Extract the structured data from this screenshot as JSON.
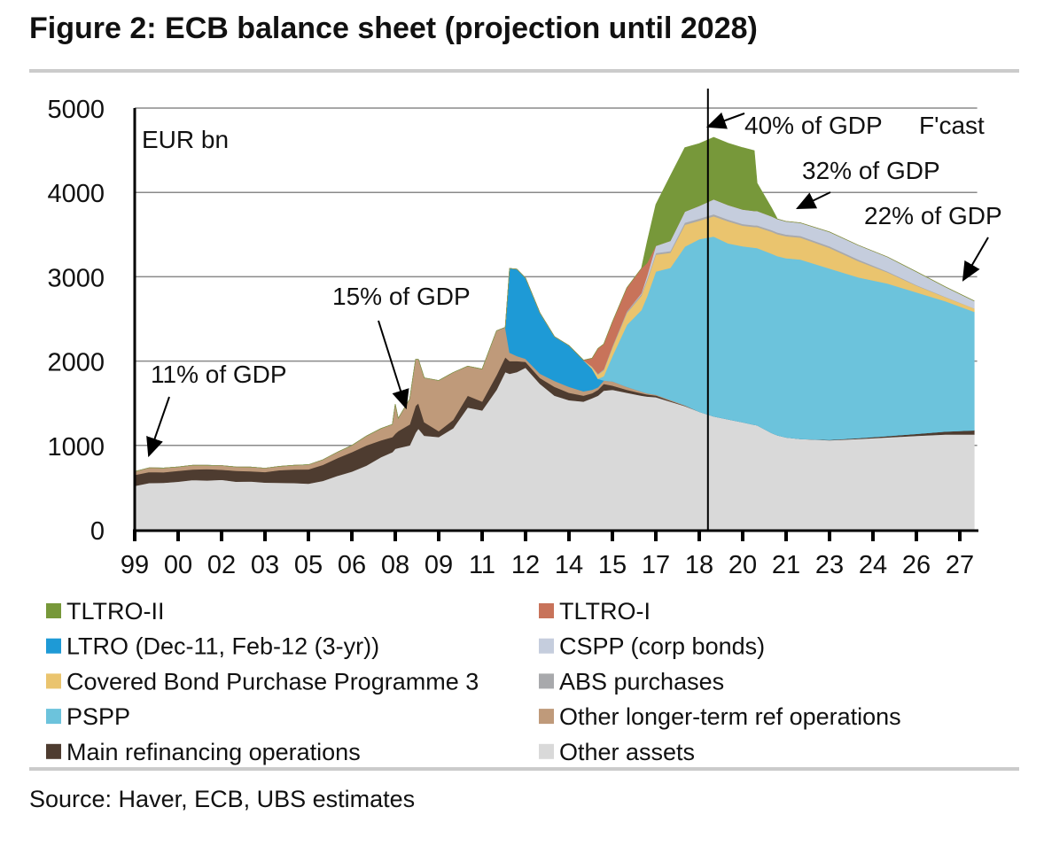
{
  "title": "Figure 2: ECB balance sheet (projection until 2028)",
  "source": "Source:  Haver, ECB, UBS estimates",
  "chart_data": {
    "type": "area",
    "stacked": true,
    "title": "Figure 2: ECB balance sheet (projection until 2028)",
    "ylabel": "EUR bn",
    "xlabel": "",
    "ylim": [
      0,
      5000
    ],
    "xlim": [
      1999,
      2028.1
    ],
    "grid": true,
    "legend_position": "bottom",
    "forecast_start": 2018.8,
    "forecast_label": "F'cast",
    "y_ticks": [
      "0",
      "1000",
      "2000",
      "3000",
      "4000",
      "5000"
    ],
    "y_tick_values": [
      0,
      1000,
      2000,
      3000,
      4000,
      5000
    ],
    "x_ticks": [
      "99",
      "00",
      "02",
      "03",
      "05",
      "06",
      "08",
      "09",
      "11",
      "12",
      "14",
      "15",
      "17",
      "18",
      "20",
      "21",
      "23",
      "24",
      "26",
      "27"
    ],
    "x_tick_values": [
      1999,
      2000.5,
      2002,
      2003.5,
      2005,
      2006.5,
      2008,
      2009.5,
      2011,
      2012.5,
      2014,
      2015.5,
      2017,
      2018.5,
      2020,
      2021.5,
      2023,
      2024.5,
      2026,
      2027.5
    ],
    "annotations": [
      {
        "text": "11% of GDP",
        "x": 1999.5
      },
      {
        "text": "15% of GDP",
        "x": 2008.4
      },
      {
        "text": "40% of GDP",
        "x": 2018.8
      },
      {
        "text": "32% of GDP",
        "x": 2021.5
      },
      {
        "text": "22% of GDP",
        "x": 2027.6
      }
    ],
    "x": [
      1999.0,
      1999.5,
      2000.0,
      2000.5,
      2001.0,
      2001.5,
      2002.0,
      2002.5,
      2003.0,
      2003.5,
      2004.0,
      2004.5,
      2005.0,
      2005.5,
      2006.0,
      2006.5,
      2007.0,
      2007.5,
      2007.9,
      2008.0,
      2008.1,
      2008.5,
      2008.7,
      2008.8,
      2009.0,
      2009.5,
      2010.0,
      2010.5,
      2011.0,
      2011.5,
      2011.8,
      2011.95,
      2012.2,
      2012.5,
      2013.0,
      2013.5,
      2014.0,
      2014.5,
      2014.8,
      2015.0,
      2015.2,
      2015.5,
      2016.0,
      2016.5,
      2016.7,
      2017.0,
      2017.5,
      2018.0,
      2018.5,
      2019.0,
      2019.5,
      2020.0,
      2020.4,
      2020.5,
      2021.0,
      2021.2,
      2021.5,
      2022.0,
      2023.0,
      2024.0,
      2025.0,
      2026.0,
      2027.0,
      2028.0
    ],
    "series": [
      {
        "name": "Other assets",
        "color": "#D9D9D9",
        "values": [
          520,
          555,
          557,
          570,
          590,
          585,
          592,
          570,
          574,
          560,
          557,
          555,
          546,
          580,
          640,
          690,
          760,
          860,
          920,
          960,
          970,
          1000,
          1150,
          1200,
          1116,
          1100,
          1204,
          1450,
          1415,
          1660,
          1870,
          1850,
          1870,
          1922,
          1730,
          1590,
          1537,
          1520,
          1560,
          1590,
          1650,
          1660,
          1625,
          1590,
          1580,
          1572,
          1520,
          1467,
          1400,
          1345,
          1310,
          1275,
          1245,
          1240,
          1148,
          1120,
          1096,
          1078,
          1061,
          1078,
          1096,
          1113,
          1130,
          1130
        ]
      },
      {
        "name": "Main refinancing operations",
        "color": "#4E3C30",
        "values": [
          130,
          130,
          125,
          130,
          125,
          135,
          120,
          130,
          120,
          125,
          150,
          160,
          170,
          190,
          210,
          230,
          240,
          200,
          180,
          180,
          200,
          250,
          320,
          300,
          160,
          70,
          100,
          140,
          105,
          175,
          175,
          150,
          130,
          70,
          70,
          105,
          88,
          70,
          60,
          70,
          80,
          50,
          35,
          30,
          25,
          20,
          10,
          5,
          0,
          0,
          0,
          0,
          0,
          0,
          0,
          0,
          0,
          0,
          5,
          10,
          15,
          25,
          35,
          50
        ]
      },
      {
        "name": "Other longer-term ref operations",
        "color": "#BF9A7A",
        "values": [
          40,
          50,
          50,
          45,
          50,
          45,
          50,
          45,
          50,
          45,
          45,
          50,
          55,
          60,
          70,
          80,
          110,
          140,
          150,
          350,
          150,
          300,
          550,
          520,
          525,
          600,
          560,
          350,
          385,
          525,
          355,
          100,
          60,
          35,
          52,
          70,
          70,
          52,
          40,
          30,
          40,
          50,
          35,
          20,
          15,
          10,
          10,
          5,
          0,
          0,
          0,
          0,
          0,
          0,
          0,
          0,
          0,
          0,
          0,
          0,
          0,
          0,
          0,
          0
        ]
      },
      {
        "name": "LTRO (Dec-11, Feb-12 (3-yr))",
        "color": "#1E9AD6",
        "values": [
          0,
          0,
          0,
          0,
          0,
          0,
          0,
          0,
          0,
          0,
          0,
          0,
          0,
          0,
          0,
          0,
          0,
          0,
          0,
          0,
          0,
          0,
          0,
          0,
          0,
          0,
          0,
          0,
          0,
          0,
          0,
          1000,
          1030,
          958,
          718,
          525,
          490,
          370,
          250,
          100,
          0,
          0,
          0,
          0,
          0,
          0,
          0,
          0,
          0,
          0,
          0,
          0,
          0,
          0,
          0,
          0,
          0,
          0,
          0,
          0,
          0,
          0,
          0,
          0
        ]
      },
      {
        "name": "PSPP",
        "color": "#6CC3DC",
        "values": [
          0,
          0,
          0,
          0,
          0,
          0,
          0,
          0,
          0,
          0,
          0,
          0,
          0,
          0,
          0,
          0,
          0,
          0,
          0,
          0,
          0,
          0,
          0,
          0,
          0,
          0,
          0,
          0,
          0,
          0,
          0,
          0,
          0,
          0,
          0,
          0,
          0,
          0,
          0,
          0,
          50,
          300,
          735,
          965,
          1150,
          1460,
          1565,
          1880,
          2045,
          2132,
          2086,
          2086,
          2100,
          2100,
          2126,
          2125,
          2125,
          2126,
          2032,
          1905,
          1809,
          1677,
          1545,
          1405
        ]
      },
      {
        "name": "Covered Bond Purchase Programme 3",
        "color": "#EAC46E",
        "values": [
          0,
          0,
          0,
          0,
          0,
          0,
          0,
          0,
          0,
          0,
          0,
          0,
          0,
          0,
          0,
          0,
          0,
          0,
          0,
          0,
          0,
          0,
          0,
          0,
          0,
          0,
          0,
          0,
          0,
          0,
          0,
          0,
          0,
          0,
          0,
          0,
          0,
          0,
          20,
          50,
          70,
          100,
          140,
          170,
          185,
          200,
          180,
          260,
          220,
          240,
          262,
          245,
          245,
          250,
          260,
          260,
          260,
          260,
          243,
          191,
          134,
          80,
          47,
          40
        ]
      },
      {
        "name": "ABS purchases",
        "color": "#A8A9AC",
        "values": [
          0,
          0,
          0,
          0,
          0,
          0,
          0,
          0,
          0,
          0,
          0,
          0,
          0,
          0,
          0,
          0,
          0,
          0,
          0,
          0,
          0,
          0,
          0,
          0,
          0,
          0,
          0,
          0,
          0,
          0,
          0,
          0,
          0,
          0,
          0,
          0,
          0,
          0,
          5,
          10,
          12,
          15,
          20,
          20,
          20,
          20,
          20,
          25,
          25,
          25,
          20,
          20,
          20,
          20,
          20,
          20,
          20,
          20,
          20,
          20,
          10,
          7,
          5,
          0
        ]
      },
      {
        "name": "CSPP (corp bonds)",
        "color": "#C5CDDD",
        "values": [
          0,
          0,
          0,
          0,
          0,
          0,
          0,
          0,
          0,
          0,
          0,
          0,
          0,
          0,
          0,
          0,
          0,
          0,
          0,
          0,
          0,
          0,
          0,
          0,
          0,
          0,
          0,
          0,
          0,
          0,
          0,
          0,
          0,
          0,
          0,
          0,
          0,
          0,
          0,
          0,
          0,
          0,
          0,
          10,
          40,
          85,
          120,
          130,
          150,
          176,
          172,
          171,
          170,
          170,
          162,
          160,
          155,
          155,
          170,
          169,
          171,
          158,
          118,
          88
        ]
      },
      {
        "name": "TLTRO-I",
        "color": "#C8735A",
        "values": [
          0,
          0,
          0,
          0,
          0,
          0,
          0,
          0,
          0,
          0,
          0,
          0,
          0,
          0,
          0,
          0,
          0,
          0,
          0,
          0,
          0,
          0,
          0,
          0,
          0,
          0,
          0,
          0,
          0,
          0,
          0,
          0,
          0,
          0,
          0,
          0,
          0,
          0,
          100,
          300,
          300,
          290,
          280,
          295,
          150,
          0,
          0,
          0,
          0,
          0,
          0,
          0,
          0,
          0,
          0,
          0,
          0,
          0,
          0,
          0,
          0,
          0,
          0,
          0
        ]
      },
      {
        "name": "TLTRO-II",
        "color": "#77983A",
        "values": [
          0,
          0,
          0,
          0,
          0,
          0,
          0,
          0,
          0,
          0,
          0,
          0,
          0,
          0,
          0,
          0,
          0,
          0,
          0,
          0,
          0,
          0,
          0,
          0,
          0,
          0,
          0,
          0,
          0,
          0,
          0,
          0,
          0,
          0,
          0,
          0,
          0,
          0,
          0,
          0,
          0,
          0,
          0,
          0,
          250,
          490,
          770,
          760,
          740,
          735,
          734,
          734,
          716,
          330,
          98,
          0,
          0,
          0,
          0,
          0,
          0,
          0,
          0,
          0
        ]
      }
    ],
    "legend": [
      {
        "label": "TLTRO-II",
        "color": "#77983A"
      },
      {
        "label": "TLTRO-I",
        "color": "#C8735A"
      },
      {
        "label": "LTRO (Dec-11, Feb-12 (3-yr))",
        "color": "#1E9AD6"
      },
      {
        "label": "CSPP (corp bonds)",
        "color": "#C5CDDD"
      },
      {
        "label": "Covered Bond Purchase Programme 3",
        "color": "#EAC46E"
      },
      {
        "label": "ABS purchases",
        "color": "#A8A9AC"
      },
      {
        "label": "PSPP",
        "color": "#6CC3DC"
      },
      {
        "label": "Other longer-term ref operations",
        "color": "#BF9A7A"
      },
      {
        "label": "Main refinancing operations",
        "color": "#4E3C30"
      },
      {
        "label": "Other assets",
        "color": "#D9D9D9"
      }
    ]
  }
}
